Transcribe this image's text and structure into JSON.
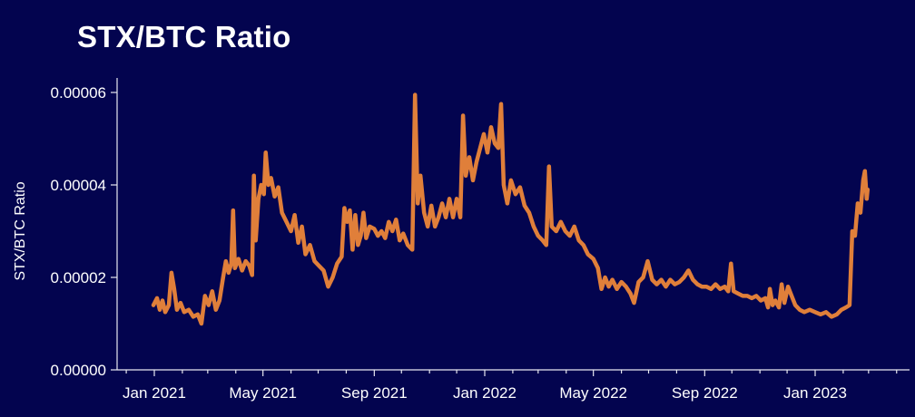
{
  "chart_data": {
    "type": "line",
    "title": "STX/BTC Ratio",
    "xlabel": "",
    "ylabel": "STX/BTC Ratio",
    "ylim": [
      0,
      6.25e-05
    ],
    "xlim": [
      "2020-12-15",
      "2023-05-01"
    ],
    "grid": false,
    "legend": null,
    "line_color": "#e07f3a",
    "background_color": "#03044f",
    "y_ticks": [
      "0.00000",
      "0.00002",
      "0.00004",
      "0.00006"
    ],
    "y_tick_values": [
      0,
      2e-05,
      4e-05,
      6e-05
    ],
    "x_ticks": [
      "Jan 2021",
      "May 2021",
      "Sep 2021",
      "Jan 2022",
      "May 2022",
      "Sep 2022",
      "Jan 2023"
    ],
    "x_tick_dates": [
      "2021-01-01",
      "2021-05-01",
      "2021-09-01",
      "2022-01-01",
      "2022-05-01",
      "2022-09-01",
      "2023-01-01"
    ],
    "series": [
      {
        "name": "STX/BTC Ratio",
        "points": [
          [
            "2020-12-31",
            1.4e-05
          ],
          [
            "2021-01-04",
            1.55e-05
          ],
          [
            "2021-01-07",
            1.3e-05
          ],
          [
            "2021-01-10",
            1.5e-05
          ],
          [
            "2021-01-13",
            1.25e-05
          ],
          [
            "2021-01-17",
            1.4e-05
          ],
          [
            "2021-01-20",
            2.1e-05
          ],
          [
            "2021-01-23",
            1.75e-05
          ],
          [
            "2021-01-26",
            1.3e-05
          ],
          [
            "2021-01-30",
            1.45e-05
          ],
          [
            "2021-02-03",
            1.25e-05
          ],
          [
            "2021-02-08",
            1.3e-05
          ],
          [
            "2021-02-13",
            1.15e-05
          ],
          [
            "2021-02-18",
            1.2e-05
          ],
          [
            "2021-02-22",
            1e-05
          ],
          [
            "2021-02-26",
            1.6e-05
          ],
          [
            "2021-03-02",
            1.4e-05
          ],
          [
            "2021-03-06",
            1.7e-05
          ],
          [
            "2021-03-10",
            1.3e-05
          ],
          [
            "2021-03-14",
            1.5e-05
          ],
          [
            "2021-03-18",
            2e-05
          ],
          [
            "2021-03-21",
            2.35e-05
          ],
          [
            "2021-03-24",
            2.1e-05
          ],
          [
            "2021-03-27",
            2.3e-05
          ],
          [
            "2021-03-29",
            3.45e-05
          ],
          [
            "2021-03-31",
            2.2e-05
          ],
          [
            "2021-04-04",
            2.4e-05
          ],
          [
            "2021-04-08",
            2.15e-05
          ],
          [
            "2021-04-12",
            2.35e-05
          ],
          [
            "2021-04-16",
            2.25e-05
          ],
          [
            "2021-04-19",
            2.05e-05
          ],
          [
            "2021-04-21",
            4.2e-05
          ],
          [
            "2021-04-23",
            2.8e-05
          ],
          [
            "2021-04-26",
            3.7e-05
          ],
          [
            "2021-04-29",
            4e-05
          ],
          [
            "2021-05-02",
            3.8e-05
          ],
          [
            "2021-05-04",
            4.7e-05
          ],
          [
            "2021-05-07",
            4e-05
          ],
          [
            "2021-05-10",
            4.15e-05
          ],
          [
            "2021-05-14",
            3.75e-05
          ],
          [
            "2021-05-18",
            3.95e-05
          ],
          [
            "2021-05-22",
            3.4e-05
          ],
          [
            "2021-05-27",
            3.2e-05
          ],
          [
            "2021-06-01",
            3e-05
          ],
          [
            "2021-06-05",
            3.35e-05
          ],
          [
            "2021-06-09",
            2.75e-05
          ],
          [
            "2021-06-13",
            3.1e-05
          ],
          [
            "2021-06-17",
            2.5e-05
          ],
          [
            "2021-06-22",
            2.7e-05
          ],
          [
            "2021-06-27",
            2.35e-05
          ],
          [
            "2021-07-02",
            2.25e-05
          ],
          [
            "2021-07-07",
            2.15e-05
          ],
          [
            "2021-07-12",
            1.8e-05
          ],
          [
            "2021-07-17",
            2e-05
          ],
          [
            "2021-07-22",
            2.3e-05
          ],
          [
            "2021-07-27",
            2.45e-05
          ],
          [
            "2021-07-30",
            3.5e-05
          ],
          [
            "2021-08-02",
            3.2e-05
          ],
          [
            "2021-08-05",
            3.45e-05
          ],
          [
            "2021-08-08",
            2.6e-05
          ],
          [
            "2021-08-11",
            3.35e-05
          ],
          [
            "2021-08-14",
            2.7e-05
          ],
          [
            "2021-08-17",
            2.9e-05
          ],
          [
            "2021-08-20",
            3.4e-05
          ],
          [
            "2021-08-23",
            2.85e-05
          ],
          [
            "2021-08-27",
            3.1e-05
          ],
          [
            "2021-09-01",
            3.05e-05
          ],
          [
            "2021-09-05",
            2.9e-05
          ],
          [
            "2021-09-09",
            3e-05
          ],
          [
            "2021-09-13",
            2.85e-05
          ],
          [
            "2021-09-17",
            3.2e-05
          ],
          [
            "2021-09-21",
            3e-05
          ],
          [
            "2021-09-25",
            3.25e-05
          ],
          [
            "2021-09-29",
            2.8e-05
          ],
          [
            "2021-10-03",
            2.95e-05
          ],
          [
            "2021-10-08",
            2.7e-05
          ],
          [
            "2021-10-13",
            2.6e-05
          ],
          [
            "2021-10-16",
            5.95e-05
          ],
          [
            "2021-10-19",
            3.6e-05
          ],
          [
            "2021-10-22",
            4.2e-05
          ],
          [
            "2021-10-26",
            3.4e-05
          ],
          [
            "2021-10-30",
            3.1e-05
          ],
          [
            "2021-11-03",
            3.55e-05
          ],
          [
            "2021-11-07",
            3.1e-05
          ],
          [
            "2021-11-11",
            3.3e-05
          ],
          [
            "2021-11-15",
            3.6e-05
          ],
          [
            "2021-11-19",
            3.3e-05
          ],
          [
            "2021-11-23",
            3.7e-05
          ],
          [
            "2021-11-27",
            3.3e-05
          ],
          [
            "2021-12-01",
            3.7e-05
          ],
          [
            "2021-12-05",
            3.3e-05
          ],
          [
            "2021-12-08",
            5.5e-05
          ],
          [
            "2021-12-11",
            4.2e-05
          ],
          [
            "2021-12-15",
            4.6e-05
          ],
          [
            "2021-12-19",
            4.1e-05
          ],
          [
            "2021-12-23",
            4.5e-05
          ],
          [
            "2021-12-27",
            4.8e-05
          ],
          [
            "2021-12-31",
            5.1e-05
          ],
          [
            "2022-01-04",
            4.7e-05
          ],
          [
            "2022-01-08",
            5.25e-05
          ],
          [
            "2022-01-12",
            4.9e-05
          ],
          [
            "2022-01-16",
            4.8e-05
          ],
          [
            "2022-01-19",
            5.75e-05
          ],
          [
            "2022-01-22",
            4e-05
          ],
          [
            "2022-01-26",
            3.6e-05
          ],
          [
            "2022-01-30",
            4.1e-05
          ],
          [
            "2022-02-04",
            3.8e-05
          ],
          [
            "2022-02-09",
            3.95e-05
          ],
          [
            "2022-02-14",
            3.55e-05
          ],
          [
            "2022-02-19",
            3.4e-05
          ],
          [
            "2022-02-24",
            3.1e-05
          ],
          [
            "2022-03-01",
            2.9e-05
          ],
          [
            "2022-03-06",
            2.8e-05
          ],
          [
            "2022-03-10",
            2.7e-05
          ],
          [
            "2022-03-13",
            4.4e-05
          ],
          [
            "2022-03-16",
            3.1e-05
          ],
          [
            "2022-03-21",
            3e-05
          ],
          [
            "2022-03-26",
            3.2e-05
          ],
          [
            "2022-03-31",
            3e-05
          ],
          [
            "2022-04-05",
            2.9e-05
          ],
          [
            "2022-04-10",
            3.1e-05
          ],
          [
            "2022-04-15",
            2.8e-05
          ],
          [
            "2022-04-20",
            2.7e-05
          ],
          [
            "2022-04-25",
            2.5e-05
          ],
          [
            "2022-05-01",
            2.4e-05
          ],
          [
            "2022-05-06",
            2.2e-05
          ],
          [
            "2022-05-10",
            1.75e-05
          ],
          [
            "2022-05-14",
            2e-05
          ],
          [
            "2022-05-18",
            1.8e-05
          ],
          [
            "2022-05-22",
            1.95e-05
          ],
          [
            "2022-05-27",
            1.75e-05
          ],
          [
            "2022-06-01",
            1.9e-05
          ],
          [
            "2022-06-06",
            1.8e-05
          ],
          [
            "2022-06-11",
            1.65e-05
          ],
          [
            "2022-06-15",
            1.45e-05
          ],
          [
            "2022-06-20",
            1.9e-05
          ],
          [
            "2022-06-25",
            2e-05
          ],
          [
            "2022-06-30",
            2.35e-05
          ],
          [
            "2022-07-05",
            1.95e-05
          ],
          [
            "2022-07-10",
            1.85e-05
          ],
          [
            "2022-07-15",
            1.95e-05
          ],
          [
            "2022-07-20",
            1.8e-05
          ],
          [
            "2022-07-25",
            1.95e-05
          ],
          [
            "2022-07-30",
            1.85e-05
          ],
          [
            "2022-08-04",
            1.9e-05
          ],
          [
            "2022-08-09",
            2e-05
          ],
          [
            "2022-08-14",
            2.15e-05
          ],
          [
            "2022-08-19",
            1.95e-05
          ],
          [
            "2022-08-24",
            1.85e-05
          ],
          [
            "2022-08-29",
            1.8e-05
          ],
          [
            "2022-09-03",
            1.8e-05
          ],
          [
            "2022-09-08",
            1.75e-05
          ],
          [
            "2022-09-13",
            1.85e-05
          ],
          [
            "2022-09-18",
            1.75e-05
          ],
          [
            "2022-09-23",
            1.8e-05
          ],
          [
            "2022-09-27",
            1.7e-05
          ],
          [
            "2022-09-30",
            2.3e-05
          ],
          [
            "2022-10-03",
            1.7e-05
          ],
          [
            "2022-10-08",
            1.65e-05
          ],
          [
            "2022-10-13",
            1.6e-05
          ],
          [
            "2022-10-18",
            1.6e-05
          ],
          [
            "2022-10-23",
            1.55e-05
          ],
          [
            "2022-10-28",
            1.6e-05
          ],
          [
            "2022-11-02",
            1.5e-05
          ],
          [
            "2022-11-07",
            1.55e-05
          ],
          [
            "2022-11-10",
            1.35e-05
          ],
          [
            "2022-11-12",
            1.75e-05
          ],
          [
            "2022-11-15",
            1.4e-05
          ],
          [
            "2022-11-18",
            1.5e-05
          ],
          [
            "2022-11-22",
            1.35e-05
          ],
          [
            "2022-11-25",
            1.85e-05
          ],
          [
            "2022-11-28",
            1.45e-05
          ],
          [
            "2022-12-02",
            1.8e-05
          ],
          [
            "2022-12-06",
            1.6e-05
          ],
          [
            "2022-12-10",
            1.4e-05
          ],
          [
            "2022-12-15",
            1.3e-05
          ],
          [
            "2022-12-20",
            1.25e-05
          ],
          [
            "2022-12-26",
            1.3e-05
          ],
          [
            "2023-01-01",
            1.25e-05
          ],
          [
            "2023-01-07",
            1.2e-05
          ],
          [
            "2023-01-13",
            1.25e-05
          ],
          [
            "2023-01-19",
            1.15e-05
          ],
          [
            "2023-01-25",
            1.2e-05
          ],
          [
            "2023-01-30",
            1.3e-05
          ],
          [
            "2023-02-04",
            1.35e-05
          ],
          [
            "2023-02-08",
            1.4e-05
          ],
          [
            "2023-02-11",
            3e-05
          ],
          [
            "2023-02-14",
            2.9e-05
          ],
          [
            "2023-02-17",
            3.6e-05
          ],
          [
            "2023-02-20",
            3.4e-05
          ],
          [
            "2023-02-23",
            4.1e-05
          ],
          [
            "2023-02-25",
            4.3e-05
          ],
          [
            "2023-02-27",
            3.7e-05
          ],
          [
            "2023-02-28",
            3.9e-05
          ]
        ]
      }
    ]
  }
}
